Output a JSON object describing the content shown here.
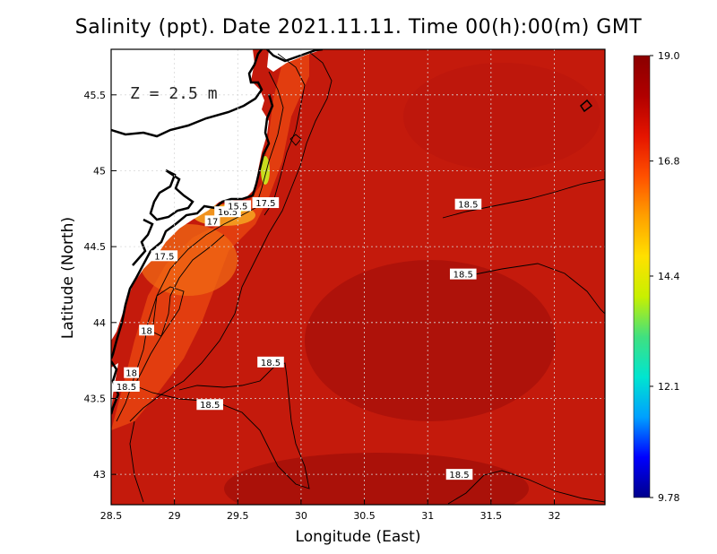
{
  "title": "Salinity (ppt). Date 2021.11.11. Time 00(h):00(m) GMT",
  "depth_label": "Z = 2.5 m",
  "x_axis": {
    "label": "Longitude (East)",
    "range": [
      28.5,
      32.4
    ],
    "ticks": [
      28.5,
      29,
      29.5,
      30,
      30.5,
      31,
      31.5,
      32
    ],
    "tick_labels": [
      "28.5",
      "29",
      "29.5",
      "30",
      "30.5",
      "31",
      "31.5",
      "32"
    ]
  },
  "y_axis": {
    "label": "Latitude (North)",
    "range": [
      42.8,
      45.8
    ],
    "ticks": [
      43,
      43.5,
      44,
      44.5,
      45,
      45.5
    ],
    "tick_labels": [
      "43",
      "43.5",
      "44",
      "44.5",
      "45",
      "45.5"
    ]
  },
  "colorbar": {
    "min": 9.78,
    "max": 19.0,
    "tick_labels": [
      "19.0",
      "16.8",
      "14.4",
      "12.1",
      "9.78"
    ],
    "tick_values": [
      19.0,
      16.8,
      14.4,
      12.1,
      9.78
    ],
    "colors": [
      "#00008b",
      "#0000ff",
      "#00a0ff",
      "#00e5d0",
      "#40e080",
      "#c8f000",
      "#ffe000",
      "#ffa000",
      "#ff5000",
      "#e51400",
      "#b00000",
      "#8b0000"
    ]
  },
  "colors": {
    "land": "#ffffff",
    "coast": "#000000",
    "sea_main": "#c41a0c",
    "sea_dark": "#a50f0a",
    "sea_coastal": "#e8400f",
    "grid": "#d8d8d8"
  },
  "contour_labels": [
    {
      "text": "17.5",
      "lon": 29.72,
      "lat": 44.79
    },
    {
      "text": "16.5",
      "lon": 29.42,
      "lat": 44.73
    },
    {
      "text": "15.5",
      "lon": 29.5,
      "lat": 44.77
    },
    {
      "text": "17",
      "lon": 29.3,
      "lat": 44.67
    },
    {
      "text": "17.5",
      "lon": 28.92,
      "lat": 44.44
    },
    {
      "text": "18",
      "lon": 28.78,
      "lat": 43.95
    },
    {
      "text": "18",
      "lon": 28.66,
      "lat": 43.67
    },
    {
      "text": "18.5",
      "lon": 28.62,
      "lat": 43.58
    },
    {
      "text": "18.5",
      "lon": 29.76,
      "lat": 43.74
    },
    {
      "text": "18.5",
      "lon": 29.28,
      "lat": 43.46
    },
    {
      "text": "18.5",
      "lon": 31.32,
      "lat": 44.78
    },
    {
      "text": "18.5",
      "lon": 31.28,
      "lat": 44.32
    },
    {
      "text": "18.5",
      "lon": 31.25,
      "lat": 43.0
    }
  ]
}
